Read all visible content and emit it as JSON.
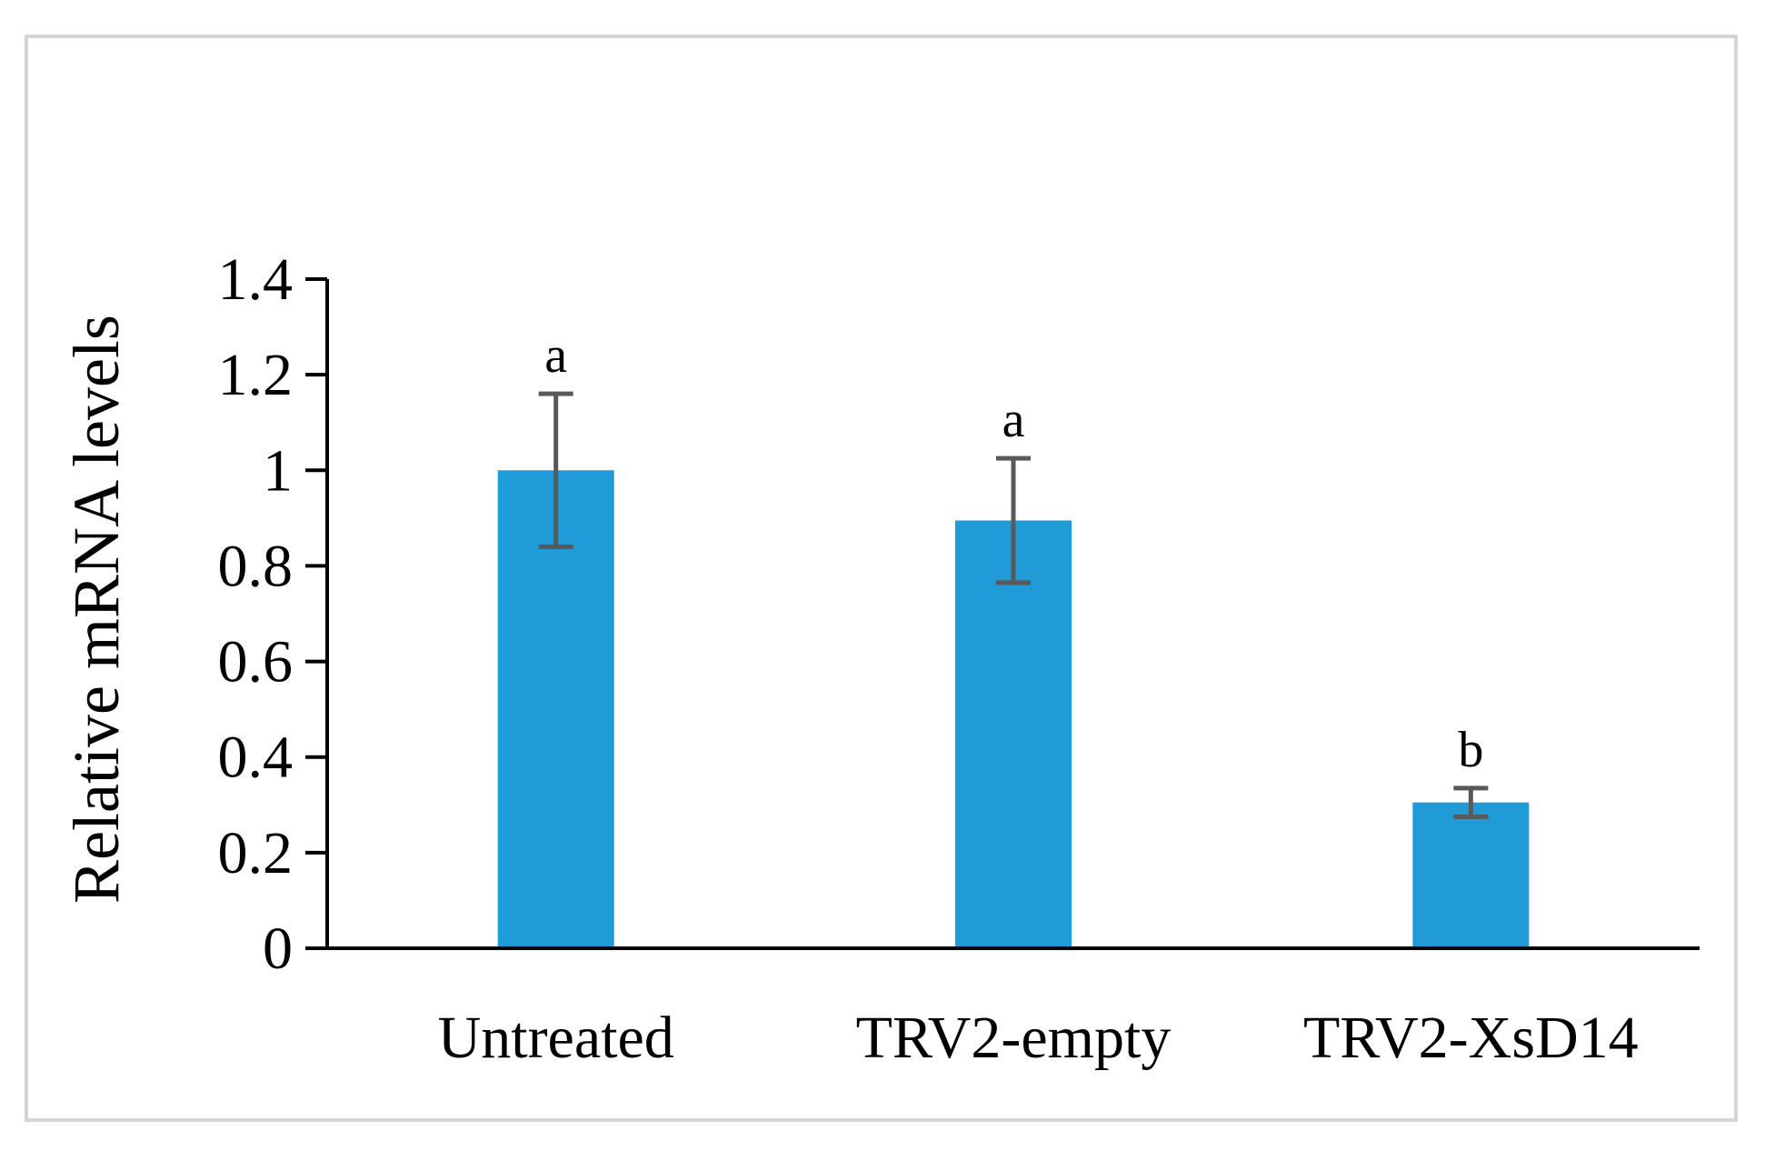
{
  "chart_data": {
    "type": "bar",
    "title": "",
    "xlabel": "",
    "ylabel": "Relative mRNA levels",
    "ylim": [
      0,
      1.4
    ],
    "yticks": [
      0,
      0.2,
      0.4,
      0.6,
      0.8,
      1,
      1.2,
      1.4
    ],
    "ytick_labels": [
      "0",
      "0.2",
      "0.4",
      "0.6",
      "0.8",
      "1",
      "1.2",
      "1.4"
    ],
    "grid": false,
    "legend": "none",
    "categories": [
      "Untreated",
      "TRV2-empty",
      "TRV2-XsD14"
    ],
    "values": [
      1.0,
      0.895,
      0.305
    ],
    "error_upper": [
      1.16,
      1.025,
      0.335
    ],
    "error_lower": [
      0.84,
      0.765,
      0.275
    ],
    "significance": [
      "a",
      "a",
      "b"
    ],
    "bar_color": "#1f9bd7",
    "error_color": "#595959",
    "axis_color": "#000000"
  }
}
